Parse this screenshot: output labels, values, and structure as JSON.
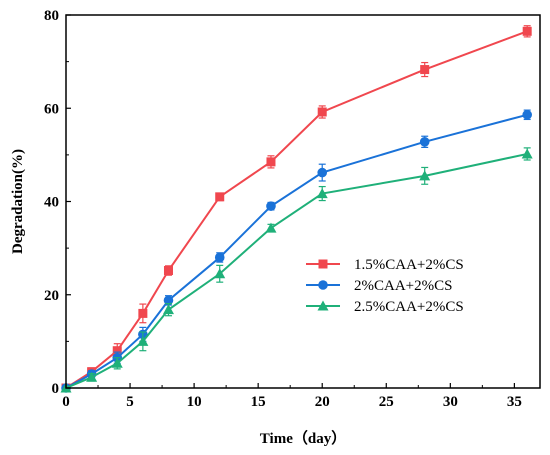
{
  "chart_data": {
    "type": "line",
    "xlabel": "Time（day）",
    "ylabel": "Degradation(%)",
    "xlim": [
      0,
      37
    ],
    "ylim": [
      0,
      80
    ],
    "x_ticks": [
      0,
      5,
      10,
      15,
      20,
      25,
      30,
      35
    ],
    "y_ticks": [
      0,
      20,
      40,
      60,
      80
    ],
    "legend_position": "middle-right",
    "grid": false,
    "series": [
      {
        "name": "1.5%CAA+2%CS",
        "color": "#f0474e",
        "marker": "square",
        "x": [
          0,
          2,
          4,
          6,
          8,
          12,
          16,
          20,
          28,
          36
        ],
        "y": [
          0,
          3.5,
          8,
          16,
          25.2,
          41,
          48.5,
          59.2,
          68.3,
          76.5
        ],
        "err": [
          0,
          0.8,
          1.5,
          2,
          1,
          0.8,
          1.3,
          1.3,
          1.5,
          1.2
        ]
      },
      {
        "name": "2%CAA+2%CS",
        "color": "#1a72d8",
        "marker": "circle",
        "x": [
          0,
          2,
          4,
          6,
          8,
          12,
          16,
          20,
          28,
          36
        ],
        "y": [
          0,
          3,
          6.5,
          11.5,
          18.8,
          28,
          39,
          46.2,
          52.8,
          58.6
        ],
        "err": [
          0,
          0.7,
          1.2,
          1.5,
          1,
          1,
          0.8,
          1.8,
          1.2,
          1
        ]
      },
      {
        "name": "2.5%CAA+2%CS",
        "color": "#1fb079",
        "marker": "triangle",
        "x": [
          0,
          2,
          4,
          6,
          8,
          12,
          16,
          20,
          28,
          36
        ],
        "y": [
          0,
          2.3,
          5.3,
          10,
          16.8,
          24.5,
          34.3,
          41.7,
          45.5,
          50.2
        ],
        "err": [
          0,
          0.8,
          1.2,
          2,
          1.3,
          1.8,
          0.8,
          1.5,
          1.8,
          1.3
        ]
      }
    ]
  }
}
